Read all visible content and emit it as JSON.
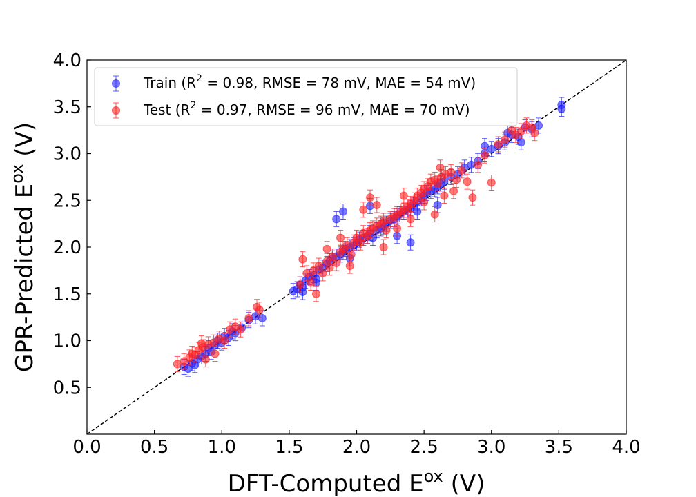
{
  "chart_data": {
    "type": "scatter",
    "xlabel": {
      "main": "DFT-Computed E",
      "sup": "ox",
      "unit": " (V)"
    },
    "ylabel": {
      "main": "GPR-Predicted E",
      "sup": "ox",
      "unit": " (V)"
    },
    "xlim": [
      0.0,
      4.0
    ],
    "ylim": [
      0.0,
      4.0
    ],
    "xticks": [
      "0.0",
      "0.5",
      "1.0",
      "1.5",
      "2.0",
      "2.5",
      "3.0",
      "3.5",
      "4.0"
    ],
    "yticks": [
      "0.5",
      "1.0",
      "1.5",
      "2.0",
      "2.5",
      "3.0",
      "3.5",
      "4.0"
    ],
    "grid": false,
    "legend_position": "top-left",
    "reference_line": {
      "style": "dashed",
      "color": "#000000",
      "from": [
        0,
        0
      ],
      "to": [
        4,
        4
      ]
    },
    "series": [
      {
        "name": "Train",
        "legend_prefix": "Train (R",
        "legend_sup": "2",
        "legend_suffix": " = 0.98, RMSE = 78 mV, MAE = 54 mV)",
        "color": "#1f1fff",
        "points": [
          [
            0.72,
            0.72
          ],
          [
            0.75,
            0.7
          ],
          [
            0.78,
            0.76
          ],
          [
            0.8,
            0.74
          ],
          [
            0.82,
            0.8
          ],
          [
            0.85,
            0.83
          ],
          [
            0.88,
            0.86
          ],
          [
            0.9,
            0.92
          ],
          [
            0.92,
            0.88
          ],
          [
            0.95,
            0.95
          ],
          [
            0.97,
            1.0
          ],
          [
            1.0,
            0.98
          ],
          [
            1.02,
            1.05
          ],
          [
            1.05,
            1.03
          ],
          [
            1.08,
            1.1
          ],
          [
            1.1,
            1.08
          ],
          [
            1.15,
            1.14
          ],
          [
            1.2,
            1.22
          ],
          [
            1.25,
            1.26
          ],
          [
            1.3,
            1.24
          ],
          [
            1.53,
            1.53
          ],
          [
            1.56,
            1.55
          ],
          [
            1.58,
            1.6
          ],
          [
            1.6,
            1.57
          ],
          [
            1.62,
            1.64
          ],
          [
            1.65,
            1.68
          ],
          [
            1.68,
            1.7
          ],
          [
            1.7,
            1.66
          ],
          [
            1.72,
            1.76
          ],
          [
            1.75,
            1.78
          ],
          [
            1.78,
            1.82
          ],
          [
            1.8,
            1.85
          ],
          [
            1.82,
            1.88
          ],
          [
            1.85,
            1.9
          ],
          [
            1.88,
            1.92
          ],
          [
            1.9,
            1.95
          ],
          [
            1.92,
            1.98
          ],
          [
            1.95,
            2.0
          ],
          [
            1.98,
            2.02
          ],
          [
            2.0,
            2.05
          ],
          [
            2.02,
            2.08
          ],
          [
            2.05,
            2.1
          ],
          [
            2.08,
            2.12
          ],
          [
            2.1,
            2.15
          ],
          [
            2.12,
            2.1
          ],
          [
            2.15,
            2.18
          ],
          [
            2.18,
            2.2
          ],
          [
            2.2,
            2.22
          ],
          [
            2.22,
            2.25
          ],
          [
            2.25,
            2.28
          ],
          [
            2.28,
            2.3
          ],
          [
            2.3,
            2.33
          ],
          [
            2.32,
            2.35
          ],
          [
            2.35,
            2.38
          ],
          [
            2.38,
            2.4
          ],
          [
            2.4,
            2.42
          ],
          [
            2.42,
            2.45
          ],
          [
            2.45,
            2.48
          ],
          [
            2.48,
            2.52
          ],
          [
            2.5,
            2.55
          ],
          [
            2.52,
            2.58
          ],
          [
            2.55,
            2.6
          ],
          [
            2.58,
            2.62
          ],
          [
            2.6,
            2.65
          ],
          [
            2.62,
            2.68
          ],
          [
            2.65,
            2.7
          ],
          [
            2.7,
            2.75
          ],
          [
            2.75,
            2.78
          ],
          [
            2.8,
            2.85
          ],
          [
            2.85,
            2.88
          ],
          [
            2.9,
            2.92
          ],
          [
            2.95,
            3.0
          ],
          [
            3.0,
            3.05
          ],
          [
            3.05,
            3.08
          ],
          [
            3.1,
            3.12
          ],
          [
            3.15,
            3.2
          ],
          [
            3.2,
            3.18
          ],
          [
            3.25,
            3.28
          ],
          [
            3.3,
            3.26
          ],
          [
            3.35,
            3.3
          ],
          [
            1.85,
            2.3
          ],
          [
            1.9,
            2.38
          ],
          [
            2.1,
            2.44
          ],
          [
            2.45,
            2.38
          ],
          [
            2.6,
            2.45
          ],
          [
            2.3,
            2.12
          ],
          [
            2.4,
            2.05
          ],
          [
            1.95,
            1.88
          ],
          [
            1.7,
            1.62
          ],
          [
            1.6,
            1.52
          ],
          [
            3.52,
            3.48
          ],
          [
            3.52,
            3.52
          ],
          [
            2.95,
            3.08
          ],
          [
            3.12,
            3.22
          ],
          [
            3.22,
            3.12
          ]
        ]
      },
      {
        "name": "Test",
        "legend_prefix": "Test (R",
        "legend_sup": "2",
        "legend_suffix": " = 0.97, RMSE = 96 mV, MAE = 70 mV)",
        "color": "#ff2020",
        "points": [
          [
            0.67,
            0.75
          ],
          [
            0.72,
            0.78
          ],
          [
            0.76,
            0.82
          ],
          [
            0.8,
            0.85
          ],
          [
            0.83,
            0.9
          ],
          [
            0.86,
            0.93
          ],
          [
            0.9,
            0.96
          ],
          [
            0.94,
            0.98
          ],
          [
            0.98,
            1.02
          ],
          [
            1.02,
            1.0
          ],
          [
            1.06,
            1.12
          ],
          [
            1.1,
            1.15
          ],
          [
            1.14,
            1.12
          ],
          [
            1.2,
            1.24
          ],
          [
            1.26,
            1.36
          ],
          [
            1.28,
            1.33
          ],
          [
            0.88,
            0.8
          ],
          [
            0.95,
            0.86
          ],
          [
            0.78,
            0.86
          ],
          [
            0.85,
            0.97
          ],
          [
            1.58,
            1.6
          ],
          [
            1.6,
            1.87
          ],
          [
            1.63,
            1.72
          ],
          [
            1.66,
            1.62
          ],
          [
            1.68,
            1.75
          ],
          [
            1.7,
            1.5
          ],
          [
            1.72,
            1.8
          ],
          [
            1.75,
            1.72
          ],
          [
            1.78,
            1.85
          ],
          [
            1.8,
            1.78
          ],
          [
            1.82,
            1.9
          ],
          [
            1.85,
            1.83
          ],
          [
            1.88,
            1.95
          ],
          [
            1.9,
            1.98
          ],
          [
            1.93,
            2.02
          ],
          [
            1.96,
            1.92
          ],
          [
            1.98,
            2.05
          ],
          [
            2.0,
            2.1
          ],
          [
            2.03,
            2.05
          ],
          [
            2.05,
            2.15
          ],
          [
            2.08,
            2.12
          ],
          [
            2.1,
            2.18
          ],
          [
            2.12,
            2.2
          ],
          [
            2.15,
            2.23
          ],
          [
            2.18,
            2.25
          ],
          [
            2.2,
            2.28
          ],
          [
            2.22,
            2.18
          ],
          [
            2.25,
            2.3
          ],
          [
            2.28,
            2.33
          ],
          [
            2.3,
            2.35
          ],
          [
            2.33,
            2.38
          ],
          [
            2.35,
            2.4
          ],
          [
            2.38,
            2.43
          ],
          [
            2.4,
            2.46
          ],
          [
            2.43,
            2.5
          ],
          [
            2.45,
            2.55
          ],
          [
            2.48,
            2.58
          ],
          [
            2.5,
            2.62
          ],
          [
            2.53,
            2.65
          ],
          [
            2.55,
            2.7
          ],
          [
            2.58,
            2.72
          ],
          [
            2.6,
            2.68
          ],
          [
            2.63,
            2.75
          ],
          [
            2.66,
            2.78
          ],
          [
            2.7,
            2.8
          ],
          [
            2.74,
            2.72
          ],
          [
            2.78,
            2.82
          ],
          [
            2.82,
            2.7
          ],
          [
            2.86,
            2.53
          ],
          [
            2.9,
            2.88
          ],
          [
            2.95,
            2.98
          ],
          [
            3.0,
            2.69
          ],
          [
            3.05,
            3.1
          ],
          [
            3.1,
            3.15
          ],
          [
            3.15,
            3.25
          ],
          [
            3.18,
            3.2
          ],
          [
            3.22,
            3.24
          ],
          [
            3.26,
            3.3
          ],
          [
            3.3,
            3.28
          ],
          [
            3.32,
            3.22
          ],
          [
            2.1,
            2.53
          ],
          [
            2.05,
            2.4
          ],
          [
            2.15,
            2.45
          ],
          [
            2.3,
            2.2
          ],
          [
            2.4,
            2.3
          ],
          [
            1.78,
            1.98
          ],
          [
            1.88,
            2.1
          ],
          [
            2.5,
            2.48
          ],
          [
            2.58,
            2.35
          ],
          [
            2.65,
            2.55
          ],
          [
            2.72,
            2.6
          ],
          [
            2.2,
            2.0
          ],
          [
            1.95,
            1.8
          ],
          [
            2.35,
            2.55
          ],
          [
            2.62,
            2.85
          ]
        ]
      }
    ]
  }
}
